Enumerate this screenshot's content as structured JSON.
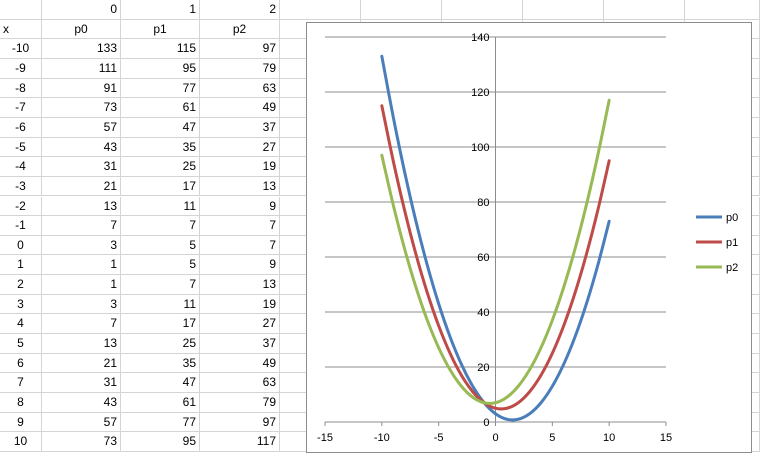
{
  "sheet": {
    "col_headers": [
      "",
      "0",
      "1",
      "2"
    ],
    "header_row": [
      "x",
      "p0",
      "p1",
      "p2"
    ],
    "rows": [
      [
        "-10",
        "133",
        "115",
        "97"
      ],
      [
        "-9",
        "111",
        "95",
        "79"
      ],
      [
        "-8",
        "91",
        "77",
        "63"
      ],
      [
        "-7",
        "73",
        "61",
        "49"
      ],
      [
        "-6",
        "57",
        "47",
        "37"
      ],
      [
        "-5",
        "43",
        "35",
        "27"
      ],
      [
        "-4",
        "31",
        "25",
        "19"
      ],
      [
        "-3",
        "21",
        "17",
        "13"
      ],
      [
        "-2",
        "13",
        "11",
        "9"
      ],
      [
        "-1",
        "7",
        "7",
        "7"
      ],
      [
        "0",
        "3",
        "5",
        "7"
      ],
      [
        "1",
        "1",
        "5",
        "9"
      ],
      [
        "2",
        "1",
        "7",
        "13"
      ],
      [
        "3",
        "3",
        "11",
        "19"
      ],
      [
        "4",
        "7",
        "17",
        "27"
      ],
      [
        "5",
        "13",
        "25",
        "37"
      ],
      [
        "6",
        "21",
        "35",
        "49"
      ],
      [
        "7",
        "31",
        "47",
        "63"
      ],
      [
        "8",
        "43",
        "61",
        "79"
      ],
      [
        "9",
        "57",
        "77",
        "97"
      ],
      [
        "10",
        "73",
        "95",
        "117"
      ]
    ]
  },
  "chart_data": {
    "type": "scatter",
    "title": "",
    "xlabel": "",
    "ylabel": "",
    "xlim": [
      -15,
      15
    ],
    "ylim": [
      0,
      140
    ],
    "xticks": [
      "-15",
      "-10",
      "-5",
      "0",
      "5",
      "10",
      "15"
    ],
    "yticks": [
      "0",
      "20",
      "40",
      "60",
      "80",
      "100",
      "120",
      "140"
    ],
    "grid": "horizontal major gridlines",
    "legend_position": "right",
    "smooth_lines": true,
    "x": [
      -10,
      -9,
      -8,
      -7,
      -6,
      -5,
      -4,
      -3,
      -2,
      -1,
      0,
      1,
      2,
      3,
      4,
      5,
      6,
      7,
      8,
      9,
      10
    ],
    "series": [
      {
        "name": "p0",
        "color": "#4a7ebb",
        "values": [
          133,
          111,
          91,
          73,
          57,
          43,
          31,
          21,
          13,
          7,
          3,
          1,
          1,
          3,
          7,
          13,
          21,
          31,
          43,
          57,
          73
        ]
      },
      {
        "name": "p1",
        "color": "#be4b48",
        "values": [
          115,
          95,
          77,
          61,
          47,
          35,
          25,
          17,
          11,
          7,
          5,
          5,
          7,
          11,
          17,
          25,
          35,
          47,
          61,
          77,
          95
        ]
      },
      {
        "name": "p2",
        "color": "#98b954",
        "values": [
          97,
          79,
          63,
          49,
          37,
          27,
          19,
          13,
          9,
          7,
          7,
          9,
          13,
          19,
          27,
          37,
          49,
          63,
          79,
          97,
          117
        ]
      }
    ]
  }
}
